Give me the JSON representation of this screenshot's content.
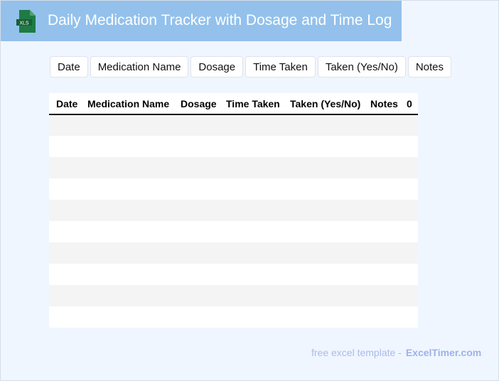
{
  "header": {
    "title": "Daily Medication Tracker with Dosage and Time Log",
    "logo_text": "XLS",
    "logo_color": "#1f7a45",
    "bg": "#93c1ec"
  },
  "buttons": [
    "Date",
    "Medication Name",
    "Dosage",
    "Time Taken",
    "Taken (Yes/No)",
    "Notes"
  ],
  "table": {
    "columns": [
      "Date",
      "Medication Name",
      "Dosage",
      "Time Taken",
      "Taken (Yes/No)",
      "Notes",
      "0"
    ],
    "rows": 10
  },
  "footer": {
    "text": "free excel template -",
    "link": "ExcelTimer.com"
  }
}
